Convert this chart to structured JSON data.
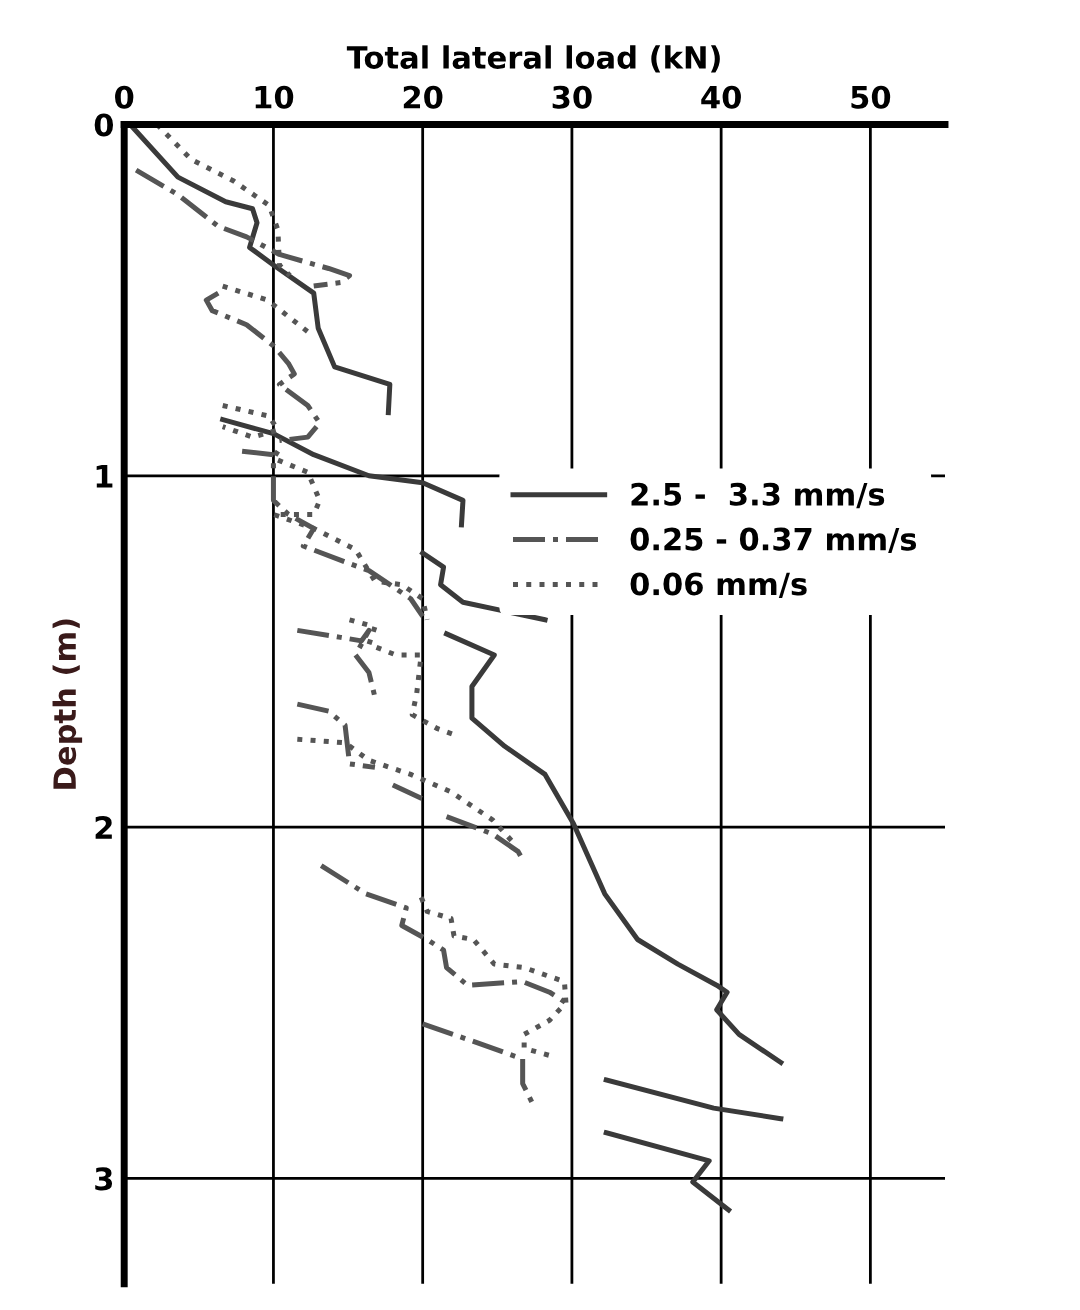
{
  "chart_data": {
    "type": "line",
    "xlabel": "Total lateral load (kN)",
    "ylabel": "Depth (m)",
    "xlim": [
      0,
      55
    ],
    "xticks": [
      0,
      10,
      20,
      30,
      40,
      50
    ],
    "ylim": [
      3.3,
      0
    ],
    "yticks": [
      0,
      1,
      2,
      3
    ],
    "grid": true,
    "legend": "right",
    "marker": "none",
    "series": [
      {
        "name": "2.5 -  3.3 mm/s",
        "color": "#3a3a3a",
        "line_style": "solid",
        "x": [
          0,
          0.4,
          3.6,
          6.8,
          8.6,
          8.9,
          8.4,
          10,
          12.7,
          13,
          14.1,
          17.8,
          17.7,
          null,
          6.6,
          10,
          12.7,
          16.4,
          20,
          22.7,
          22.6,
          null,
          20,
          21.4,
          21.2,
          22.7,
          28.2,
          null,
          21.6,
          24.8,
          23.3,
          23.3,
          25.5,
          28.2,
          30.1,
          32.2,
          34.4,
          37.1,
          39.7,
          40.4,
          39.7,
          41.2,
          44,
          null,
          32.3,
          39.5,
          44,
          null,
          32.3,
          39.2,
          38.1,
          40.5
        ],
        "values": [
          0,
          0,
          0.15,
          0.22,
          0.24,
          0.28,
          0.35,
          0.4,
          0.48,
          0.58,
          0.69,
          0.74,
          0.82,
          null,
          0.84,
          0.88,
          0.94,
          1.0,
          1.02,
          1.07,
          1.14,
          null,
          1.22,
          1.26,
          1.31,
          1.36,
          1.41,
          null,
          1.45,
          1.51,
          1.6,
          1.69,
          1.77,
          1.85,
          1.99,
          2.19,
          2.32,
          2.39,
          2.45,
          2.47,
          2.52,
          2.59,
          2.67,
          null,
          2.72,
          2.8,
          2.83,
          null,
          2.87,
          2.95,
          3.01,
          3.09
        ]
      },
      {
        "name": "0.25 - 0.37 mm/s",
        "color": "#555555",
        "line_style": "dashdot",
        "x": [
          0.8,
          3.6,
          6.3,
          8.2,
          10.4,
          13.7,
          15.1,
          14.5,
          12.7,
          null,
          6.3,
          5.5,
          5.9,
          8.2,
          10,
          11,
          11.4,
          10.4,
          12.3,
          13.1,
          12.3,
          10.4,
          null,
          7.9,
          10,
          10,
          10,
          11,
          12.7,
          12,
          15.1,
          16.4,
          17.8,
          19.2,
          20,
          null,
          11.6,
          14.5,
          15.9,
          16.4,
          15.5,
          16.4,
          16.8,
          null,
          11.6,
          13.7,
          14.8,
          15.1,
          16.8,
          null,
          18,
          20,
          null,
          21.6,
          24.7,
          26.4,
          26.8,
          null,
          13.2,
          16.2,
          18.9,
          18.6,
          20.3,
          21.4,
          21.6,
          23,
          26.7,
          28.5,
          29.6,
          null,
          20,
          23.4,
          26.7,
          26.7,
          27.4
        ],
        "values": [
          0.13,
          0.2,
          0.29,
          0.32,
          0.37,
          0.41,
          0.43,
          0.45,
          0.46,
          null,
          0.48,
          0.5,
          0.53,
          0.57,
          0.63,
          0.68,
          0.71,
          0.74,
          0.8,
          0.85,
          0.89,
          0.9,
          null,
          0.93,
          0.94,
          1.02,
          1.07,
          1.11,
          1.15,
          1.2,
          1.25,
          1.27,
          1.31,
          1.35,
          1.4,
          null,
          1.44,
          1.46,
          1.47,
          1.44,
          1.51,
          1.56,
          1.63,
          null,
          1.65,
          1.67,
          1.71,
          1.82,
          1.83,
          null,
          1.88,
          1.92,
          null,
          1.97,
          2.02,
          2.07,
          2.1,
          null,
          2.11,
          2.19,
          2.23,
          2.28,
          2.32,
          2.35,
          2.4,
          2.45,
          2.44,
          2.47,
          2.5,
          null,
          2.56,
          2.61,
          2.66,
          2.73,
          2.79
        ]
      },
      {
        "name": "0.06 mm/s",
        "color": "#555555",
        "line_style": "dotted",
        "x": [
          2.2,
          4.5,
          7.3,
          9.7,
          10.3,
          10.4,
          11.1,
          null,
          6.6,
          9.6,
          12.3,
          null,
          6.6,
          9.7,
          10.3,
          8.6,
          6.6,
          null,
          10.3,
          10,
          12.3,
          13.1,
          12.7,
          10,
          12.7,
          15.5,
          16.8,
          18.6,
          20,
          20.3,
          null,
          15.1,
          16.8,
          16.4,
          18.2,
          19.9,
          19.6,
          19.3,
          21,
          22.3,
          null,
          11.6,
          14.8,
          16.4,
          19.2,
          21.9,
          24.7,
          26.2,
          null,
          19.9,
          20.3,
          21.9,
          22.1,
          23.4,
          24.8,
          26.8,
          29.5,
          29.6,
          28.5,
          26.8,
          26.8,
          28.5
        ],
        "values": [
          0,
          0.1,
          0.16,
          0.23,
          0.3,
          0.4,
          0.43,
          null,
          0.46,
          0.5,
          0.59,
          null,
          0.8,
          0.83,
          0.87,
          0.89,
          0.86,
          null,
          0.93,
          0.95,
          0.99,
          1.07,
          1.11,
          1.11,
          1.15,
          1.21,
          1.3,
          1.31,
          1.35,
          1.41,
          null,
          1.41,
          1.43,
          1.48,
          1.51,
          1.51,
          1.62,
          1.68,
          1.72,
          1.74,
          null,
          1.75,
          1.76,
          1.81,
          1.85,
          1.9,
          1.98,
          2.05,
          null,
          2.2,
          2.24,
          2.26,
          2.31,
          2.32,
          2.39,
          2.4,
          2.44,
          2.5,
          2.55,
          2.59,
          2.63,
          2.65
        ]
      }
    ]
  }
}
